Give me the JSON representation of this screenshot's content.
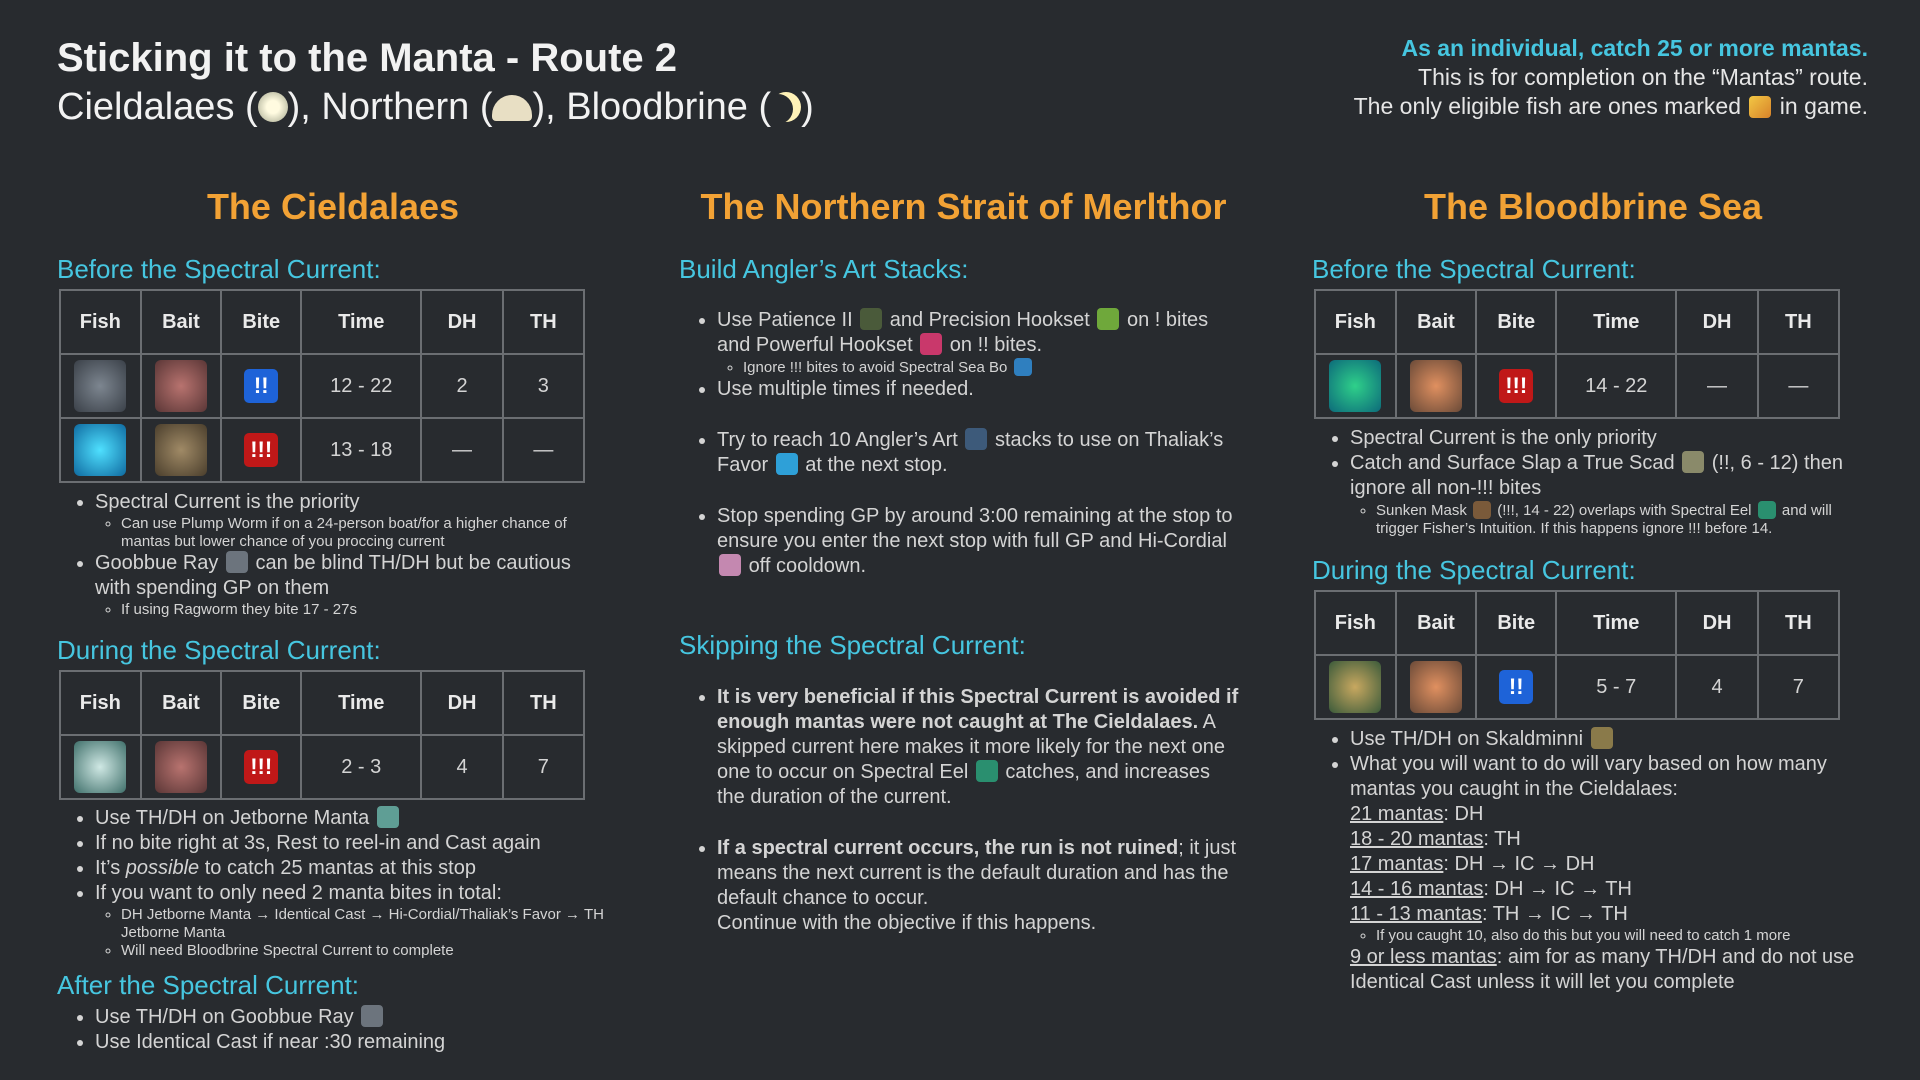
{
  "header": {
    "title": "Sticking it to the Manta - Route 2",
    "subtitle_pre": "Cieldalaes (",
    "subtitle_mid1": "), Northern (",
    "subtitle_mid2": "), Bloodbrine (",
    "subtitle_end": ")",
    "goal": "As an individual, catch 25 or more mantas.",
    "note1": "This is for completion on the “Mantas” route.",
    "note2_a": "The only eligible fish are ones marked",
    "note2_b": "in game."
  },
  "table_headers": [
    "Fish",
    "Bait",
    "Bite",
    "Time",
    "DH",
    "TH"
  ],
  "cieldalaes": {
    "title": "The Cieldalaes",
    "before_title": "Before the Spectral Current:",
    "before_rows": [
      {
        "bite": "!!",
        "time": "12 - 22",
        "dh": "2",
        "th": "3"
      },
      {
        "bite": "!!!",
        "time": "13 - 18",
        "dh": "—",
        "th": "—"
      }
    ],
    "before_notes": {
      "b1": "Spectral Current is the priority",
      "b1_sub1": "Can use Plump Worm if on a 24-person boat/for a higher chance of mantas but lower chance of you proccing current",
      "b2_a": "Goobbue Ray",
      "b2_b": "can be blind TH/DH but be cautious with spending GP on them",
      "b2_sub1": "If using Ragworm they bite 17 - 27s"
    },
    "during_title": "During the Spectral Current:",
    "during_rows": [
      {
        "bite": "!!!",
        "time": "2 - 3",
        "dh": "4",
        "th": "7"
      }
    ],
    "during_notes": {
      "b1": "Use TH/DH on Jetborne Manta",
      "b2": "If no bite right at 3s, Rest to reel-in and Cast again",
      "b3_a": "It’s",
      "b3_em": "possible",
      "b3_b": "to catch 25 mantas at this stop",
      "b4": "If you want to only need 2 manta bites in total:",
      "b4_sub1": "DH Jetborne Manta → Identical Cast → Hi-Cordial/Thaliak’s Favor → TH Jetborne Manta",
      "b4_sub2": "Will need Bloodbrine Spectral Current to complete"
    },
    "after_title": "After the Spectral Current:",
    "after_notes": {
      "b1": "Use TH/DH on Goobbue Ray",
      "b2": "Use Identical Cast if near :30 remaining"
    }
  },
  "northern": {
    "title": "The Northern Strait of Merlthor",
    "stacks_title": "Build Angler’s Art Stacks:",
    "s1_a": "Use Patience II",
    "s1_b": "and Precision Hookset",
    "s1_c": "on ! bites and Powerful Hookset",
    "s1_d": "on !! bites.",
    "s1_sub": "Ignore !!! bites to avoid Spectral Sea Bo",
    "s2": "Use multiple times if needed.",
    "s3_a": "Try to reach 10 Angler’s Art",
    "s3_b": "stacks to use on Thaliak’s Favor",
    "s3_c": "at the next stop.",
    "s4_a": "Stop spending GP by around 3:00 remaining at the stop to ensure you enter the next stop with full GP and Hi-Cordial",
    "s4_b": "off cooldown.",
    "skip_title": "Skipping the Spectral Current:",
    "k1_bold": "It is very beneficial if this Spectral Current is avoided if enough mantas were not caught at The Cieldalaes.",
    "k1_a": "A skipped current here makes it more likely for the next one one to occur on Spectral Eel",
    "k1_b": "catches, and increases the duration of the current.",
    "k2_bold": "If a spectral current occurs, the run is not ruined",
    "k2_a": "; it just means the next current is the default duration and has the default chance to occur.",
    "k2_b": "Continue with the objective if this happens."
  },
  "bloodbrine": {
    "title": "The Bloodbrine Sea",
    "before_title": "Before the Spectral Current:",
    "before_rows": [
      {
        "bite": "!!!",
        "time": "14 - 22",
        "dh": "—",
        "th": "—"
      }
    ],
    "before_notes": {
      "b1": "Spectral Current is the only priority",
      "b2_a": "Catch and Surface Slap a True Scad",
      "b2_b": "(!!, 6 - 12) then ignore all non-!!! bites",
      "b2_sub_a": "Sunken Mask",
      "b2_sub_b": "(!!!, 14 - 22) overlaps with Spectral Eel",
      "b2_sub_c": "and will trigger Fisher’s Intuition. If this happens ignore !!! before 14."
    },
    "during_title": "During the Spectral Current:",
    "during_rows": [
      {
        "bite": "!!",
        "time": "5 - 7",
        "dh": "4",
        "th": "7"
      }
    ],
    "during_notes": {
      "b1": "Use TH/DH on Skaldminni",
      "b2": "What you will want to do will vary based on how many mantas you caught in the Cieldalaes:",
      "r1_u": "21 mantas",
      "r1": ": DH",
      "r2_u": "18 - 20 mantas",
      "r2": ": TH",
      "r3_u": "17 mantas",
      "r3": ": DH → IC → DH",
      "r4_u": "14 - 16 mantas",
      "r4": ": DH → IC → TH",
      "r5_u": "11 - 13 mantas",
      "r5": ": TH → IC → TH",
      "r5_sub": "If you caught 10, also do this but you will need to catch 1 more",
      "r6_u": "9 or less mantas",
      "r6": ": aim for as many TH/DH and do not use Identical Cast unless it will let you complete"
    }
  },
  "colors": {
    "background": "#282b2f",
    "accent_cyan": "#46c6e0",
    "accent_orange": "#f2a235",
    "bite_double": "#1e63d8",
    "bite_triple": "#c01818"
  },
  "icons": [
    "sun-icon",
    "northern-helmet-icon",
    "crescent-moon-icon",
    "manta-flag-icon",
    "goobbue-ray-icon",
    "jetborne-manta-icon",
    "patience-icon",
    "precision-hookset-icon",
    "powerful-hookset-icon",
    "spectral-sea-bo-icon",
    "anglers-art-icon",
    "thaliaks-favor-icon",
    "hi-cordial-icon",
    "spectral-eel-icon",
    "true-scad-icon",
    "sunken-mask-icon",
    "skaldminni-icon"
  ]
}
